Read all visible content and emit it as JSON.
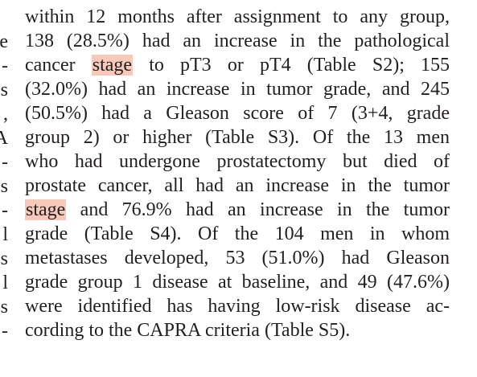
{
  "left_column": {
    "fragments": [
      "e",
      "-",
      "s",
      ",",
      "A",
      "-",
      "s",
      "-",
      "l",
      "s",
      "l",
      "s",
      "-"
    ]
  },
  "paragraph": {
    "lines": [
      {
        "pre": "within 12 months after assignment to any group,",
        "hl": "",
        "post": ""
      },
      {
        "pre": "138 (28.5%) had an increase in the pathological",
        "hl": "",
        "post": ""
      },
      {
        "pre": "cancer ",
        "hl": "stage",
        "post": " to pT3 or pT4 (Table S2); 155"
      },
      {
        "pre": "(32.0%) had an increase in tumor grade, and 245",
        "hl": "",
        "post": ""
      },
      {
        "pre": "(50.5%) had a Gleason score of 7 (3+4, grade",
        "hl": "",
        "post": ""
      },
      {
        "pre": "group 2) or higher (Table S3). Of the 13 men",
        "hl": "",
        "post": ""
      },
      {
        "pre": "who had undergone prostatectomy but died of",
        "hl": "",
        "post": ""
      },
      {
        "pre": "prostate cancer, all had an increase in the tumor",
        "hl": "",
        "post": ""
      },
      {
        "pre": "",
        "hl": "stage",
        "post": " and 76.9% had an increase in the tumor"
      },
      {
        "pre": "grade (Table S4). Of the 104 men in whom",
        "hl": "",
        "post": ""
      },
      {
        "pre": "metastases developed, 53 (51.0%) had Gleason",
        "hl": "",
        "post": ""
      },
      {
        "pre": "grade group 1 disease at baseline, and 49 (47.6%)",
        "hl": "",
        "post": ""
      },
      {
        "pre": "were identified has having low-risk disease ac-",
        "hl": "",
        "post": ""
      },
      {
        "pre": "cording to the CAPRA criteria (Table S5).",
        "hl": "",
        "post": ""
      }
    ]
  },
  "colors": {
    "text": "#231f20",
    "highlight": "#f6c9bb"
  }
}
